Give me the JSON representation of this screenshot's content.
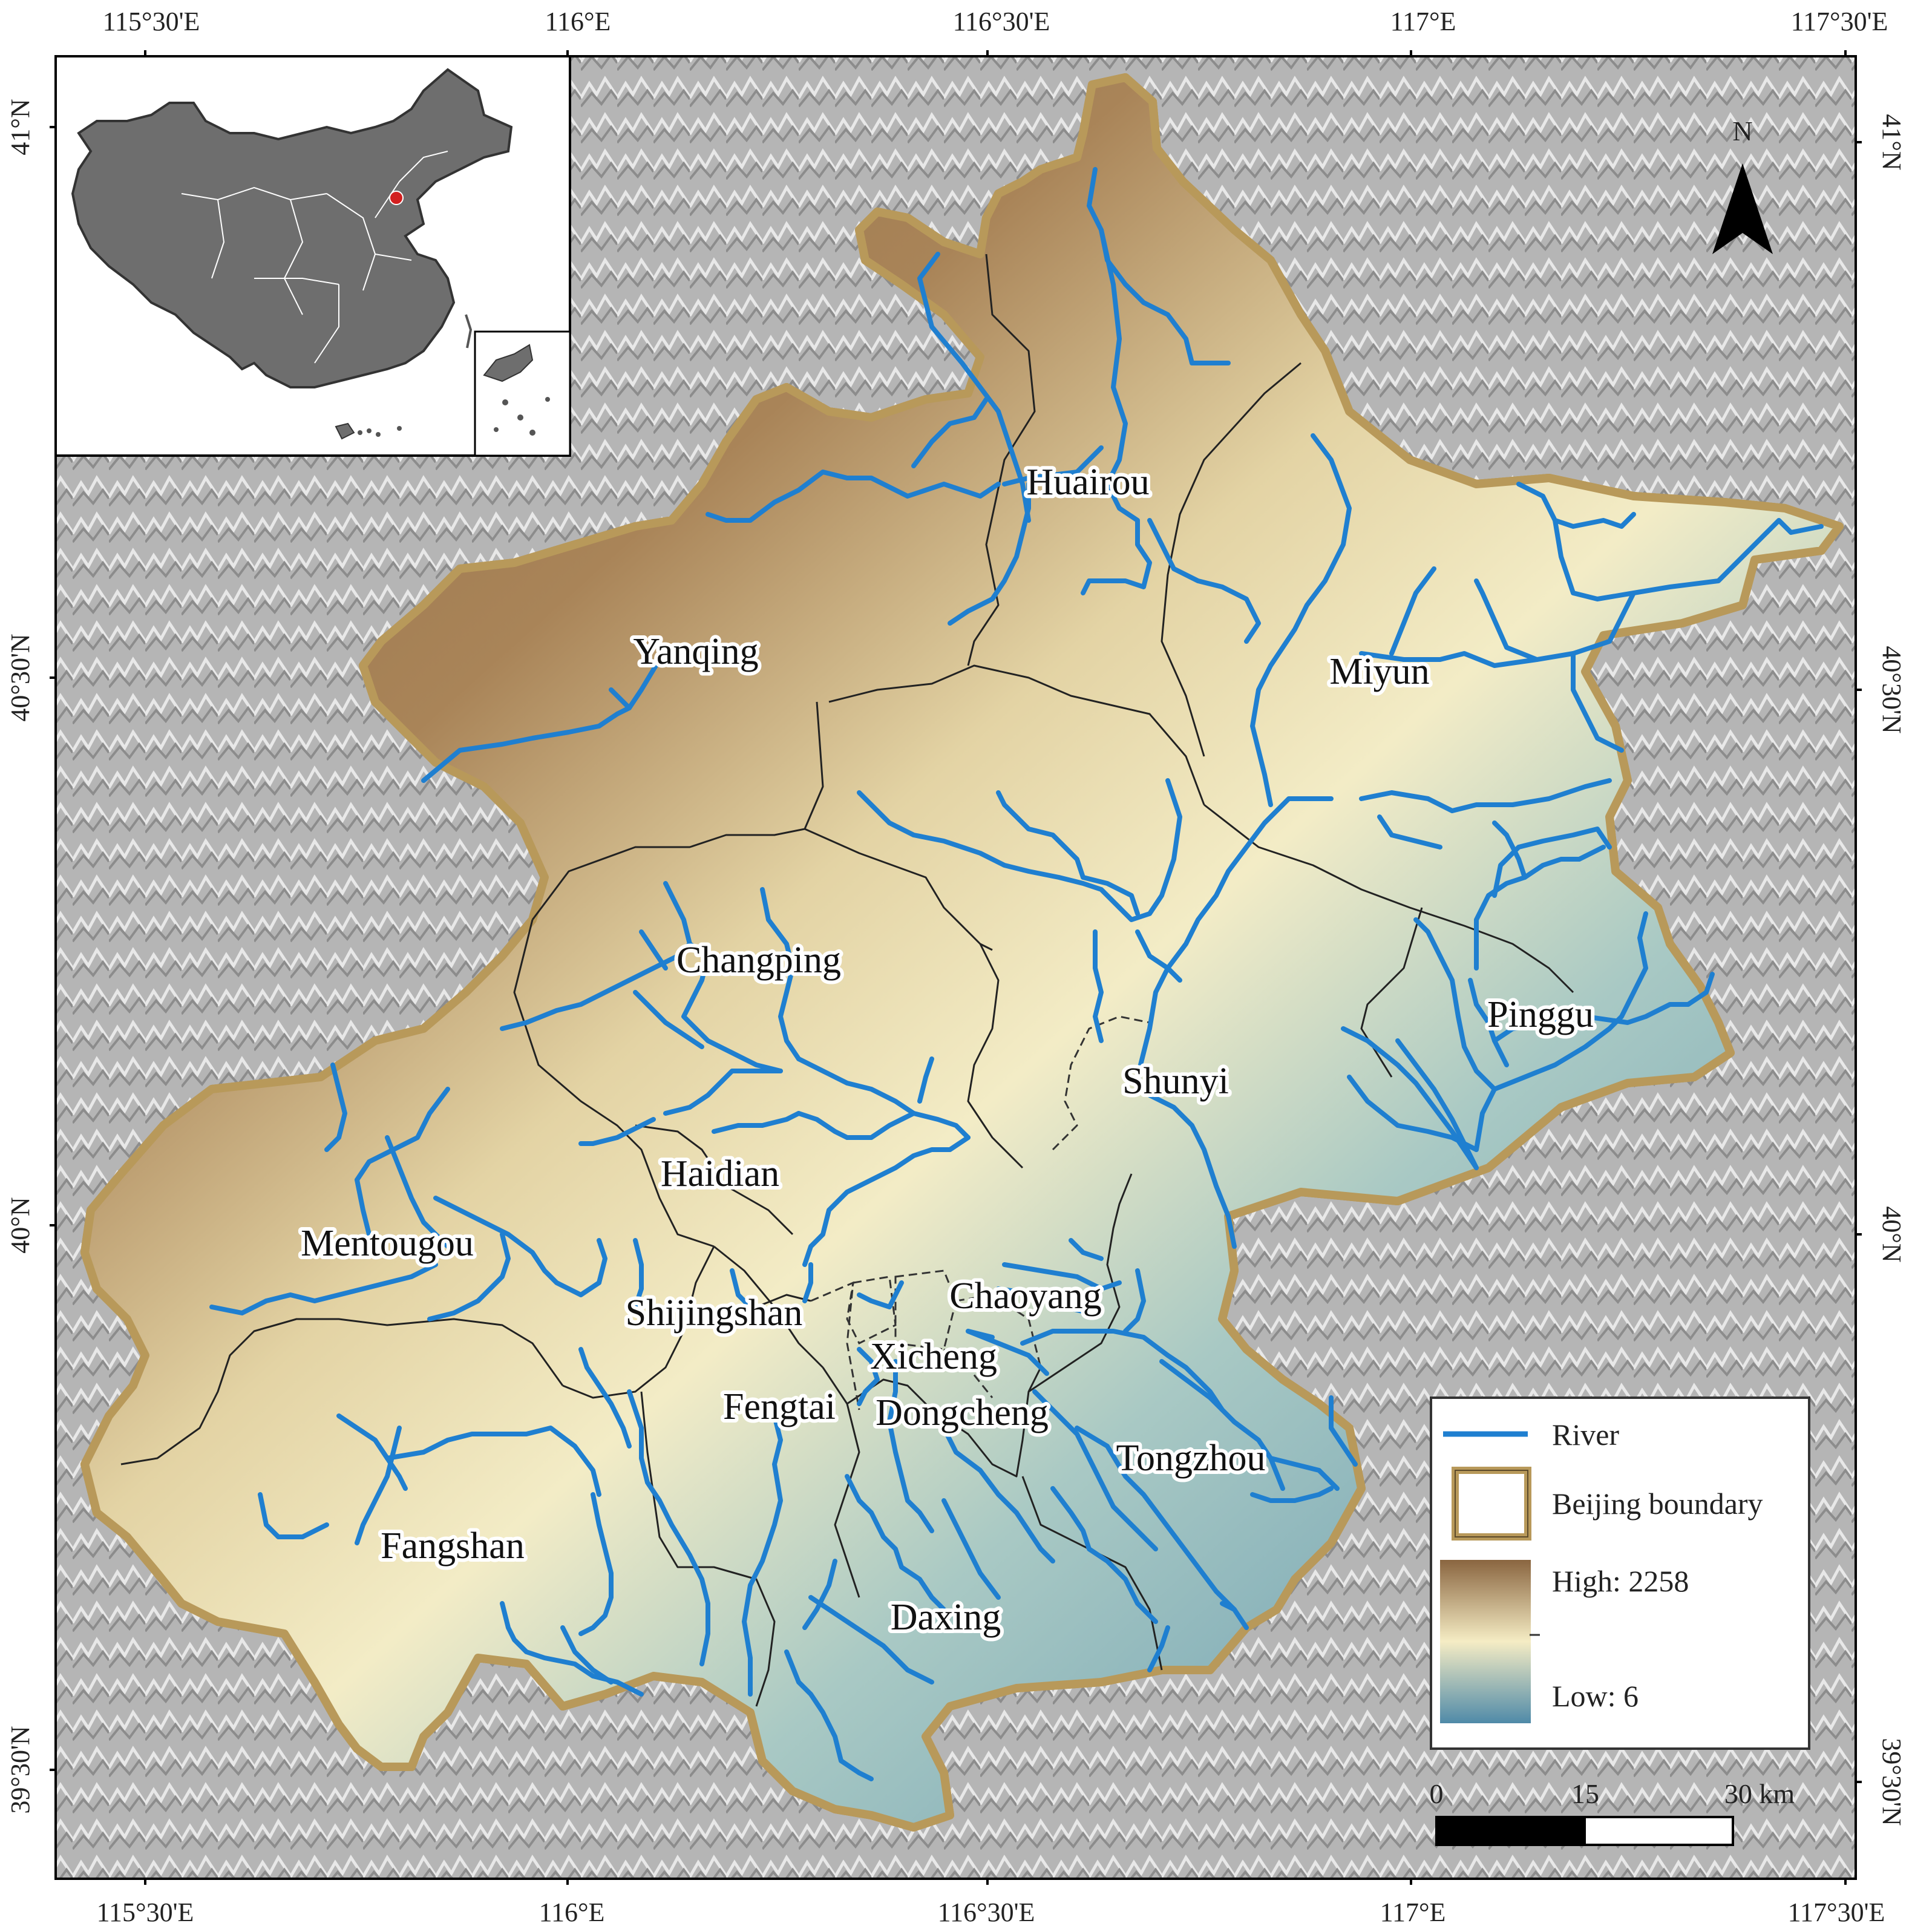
{
  "map": {
    "lon_labels": [
      "115°30'E",
      "116°E",
      "116°30'E",
      "117°E",
      "117°30'E"
    ],
    "lat_labels": [
      "41°N",
      "40°30'N",
      "40°N",
      "39°30'N"
    ],
    "north_label": "N",
    "districts": [
      {
        "name": "Huairou"
      },
      {
        "name": "Yanqing"
      },
      {
        "name": "Miyun"
      },
      {
        "name": "Changping"
      },
      {
        "name": "Pinggu"
      },
      {
        "name": "Shunyi"
      },
      {
        "name": "Haidian"
      },
      {
        "name": "Mentougou"
      },
      {
        "name": "Chaoyang"
      },
      {
        "name": "Shijingshan"
      },
      {
        "name": "Xicheng"
      },
      {
        "name": "Fengtai"
      },
      {
        "name": "Dongcheng"
      },
      {
        "name": "Tongzhou"
      },
      {
        "name": "Fangshan"
      },
      {
        "name": "Daxing"
      }
    ],
    "legend": {
      "river_label": "River",
      "boundary_label": "Beijing boundary",
      "high_label": "High: 2258",
      "low_label": "Low: 6",
      "river_color": "#1f7fd0",
      "boundary_color": "#b8995a",
      "ramp_colors": [
        "#8a6540",
        "#f5ecc4",
        "#4f8aa8"
      ]
    },
    "scale_labels": [
      "0",
      "15",
      "30 km"
    ]
  }
}
